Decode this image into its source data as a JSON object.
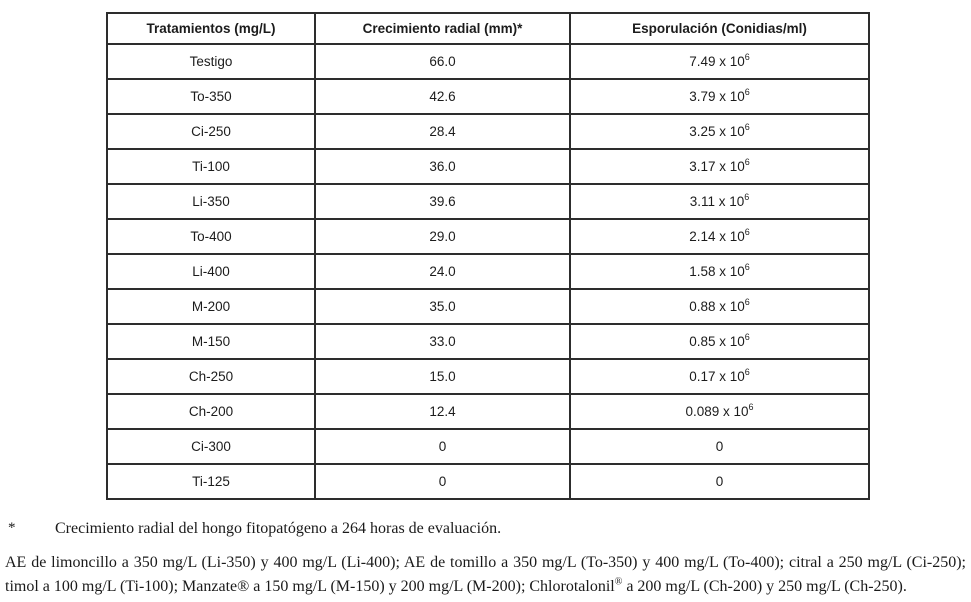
{
  "table": {
    "headers": [
      "Tratamientos (mg/L)",
      "Crecimiento radial (mm)*",
      "Esporulación (Conidias/ml)"
    ],
    "rows": [
      {
        "treatment": "Testigo",
        "growth": "66.0",
        "sporulation": "7.49 x 10",
        "exp": "6"
      },
      {
        "treatment": "To-350",
        "growth": "42.6",
        "sporulation": "3.79 x 10",
        "exp": "6"
      },
      {
        "treatment": "Ci-250",
        "growth": "28.4",
        "sporulation": "3.25 x 10",
        "exp": "6"
      },
      {
        "treatment": "Ti-100",
        "growth": "36.0",
        "sporulation": "3.17 x 10",
        "exp": "6"
      },
      {
        "treatment": "Li-350",
        "growth": "39.6",
        "sporulation": "3.11 x 10",
        "exp": "6"
      },
      {
        "treatment": "To-400",
        "growth": "29.0",
        "sporulation": "2.14 x 10",
        "exp": "6"
      },
      {
        "treatment": "Li-400",
        "growth": "24.0",
        "sporulation": "1.58 x 10",
        "exp": "6"
      },
      {
        "treatment": "M-200",
        "growth": "35.0",
        "sporulation": "0.88 x 10",
        "exp": "6"
      },
      {
        "treatment": "M-150",
        "growth": "33.0",
        "sporulation": "0.85 x 10",
        "exp": "6"
      },
      {
        "treatment": "Ch-250",
        "growth": "15.0",
        "sporulation": "0.17 x 10",
        "exp": "6"
      },
      {
        "treatment": "Ch-200",
        "growth": "12.4",
        "sporulation": "0.089 x 10",
        "exp": "6"
      },
      {
        "treatment": "Ci-300",
        "growth": "0",
        "sporulation": "0",
        "exp": ""
      },
      {
        "treatment": "Ti-125",
        "growth": "0",
        "sporulation": "0",
        "exp": ""
      }
    ]
  },
  "footnotes": {
    "marker": "*",
    "asterisk_text": "Crecimiento radial del hongo fitopatógeno a 264 horas de evaluación.",
    "para_before_reg": "AE de limoncillo a 350 mg/L (Li-350) y 400 mg/L (Li-400); AE de tomillo a 350 mg/L (To-350) y 400 mg/L (To-400); citral a 250 mg/L (Ci-250); timol a 100 mg/L (Ti-100); Manzate® a 150 mg/L (M-150) y 200 mg/L (M-200); Chlorotalonil",
    "reg_mark": "®",
    "para_after_reg": " a 200 mg/L (Ch-200) y 250 mg/L (Ch-250)."
  },
  "colors": {
    "text": "#1c1c1c",
    "border": "#2d2d2d",
    "background": "#ffffff"
  }
}
